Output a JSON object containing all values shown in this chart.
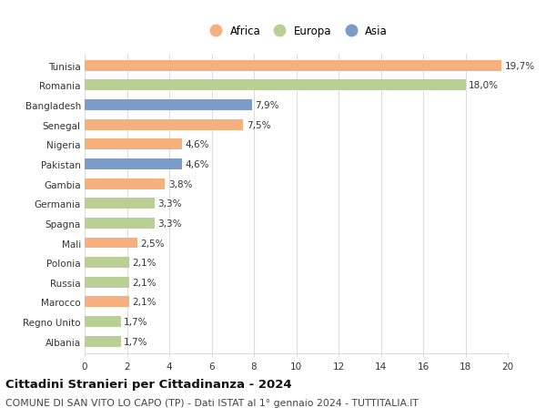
{
  "countries": [
    "Tunisia",
    "Romania",
    "Bangladesh",
    "Senegal",
    "Nigeria",
    "Pakistan",
    "Gambia",
    "Germania",
    "Spagna",
    "Mali",
    "Polonia",
    "Russia",
    "Marocco",
    "Regno Unito",
    "Albania"
  ],
  "values": [
    19.7,
    18.0,
    7.9,
    7.5,
    4.6,
    4.6,
    3.8,
    3.3,
    3.3,
    2.5,
    2.1,
    2.1,
    2.1,
    1.7,
    1.7
  ],
  "labels": [
    "19,7%",
    "18,0%",
    "7,9%",
    "7,5%",
    "4,6%",
    "4,6%",
    "3,8%",
    "3,3%",
    "3,3%",
    "2,5%",
    "2,1%",
    "2,1%",
    "2,1%",
    "1,7%",
    "1,7%"
  ],
  "continents": [
    "Africa",
    "Europa",
    "Asia",
    "Africa",
    "Africa",
    "Asia",
    "Africa",
    "Europa",
    "Europa",
    "Africa",
    "Europa",
    "Europa",
    "Africa",
    "Europa",
    "Europa"
  ],
  "colors": {
    "Africa": "#F5B07E",
    "Europa": "#BACF96",
    "Asia": "#7B9CC8"
  },
  "xlim": [
    0,
    20
  ],
  "xticks": [
    0,
    2,
    4,
    6,
    8,
    10,
    12,
    14,
    16,
    18,
    20
  ],
  "title": "Cittadini Stranieri per Cittadinanza - 2024",
  "subtitle": "COMUNE DI SAN VITO LO CAPO (TP) - Dati ISTAT al 1° gennaio 2024 - TUTTITALIA.IT",
  "background_color": "#ffffff",
  "grid_color": "#dddddd",
  "bar_height": 0.55,
  "title_fontsize": 9.5,
  "subtitle_fontsize": 7.8,
  "label_fontsize": 7.5,
  "tick_fontsize": 7.5,
  "legend_fontsize": 8.5
}
